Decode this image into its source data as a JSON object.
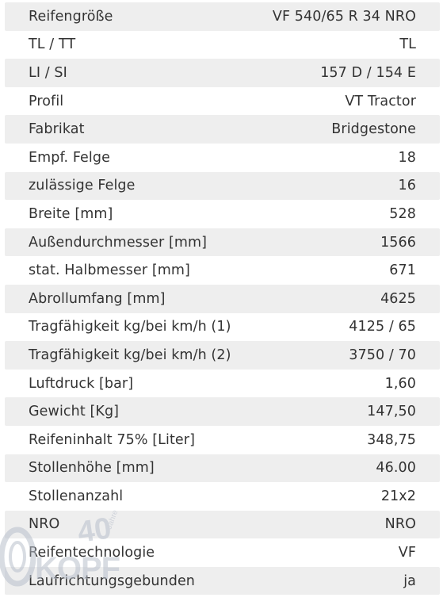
{
  "specs": [
    {
      "label": "Reifengröße",
      "value": "VF 540/65 R 34 NRO"
    },
    {
      "label": "TL / TT",
      "value": "TL"
    },
    {
      "label": "LI / SI",
      "value": "157 D / 154 E"
    },
    {
      "label": "Profil",
      "value": "VT Tractor"
    },
    {
      "label": "Fabrikat",
      "value": "Bridgestone"
    },
    {
      "label": "Empf. Felge",
      "value": "18"
    },
    {
      "label": "zulässige Felge",
      "value": "16"
    },
    {
      "label": "Breite [mm]",
      "value": "528"
    },
    {
      "label": "Außendurchmesser [mm]",
      "value": "1566"
    },
    {
      "label": "stat. Halbmesser [mm]",
      "value": "671"
    },
    {
      "label": "Abrollumfang [mm]",
      "value": "4625"
    },
    {
      "label": "Tragfähigkeit kg/bei km/h (1)",
      "value": "4125 / 65"
    },
    {
      "label": "Tragfähigkeit kg/bei km/h (2)",
      "value": "3750 / 70"
    },
    {
      "label": "Luftdruck [bar]",
      "value": "1,60"
    },
    {
      "label": "Gewicht [Kg]",
      "value": "147,50"
    },
    {
      "label": "Reifeninhalt 75% [Liter]",
      "value": "348,75"
    },
    {
      "label": "Stollenhöhe [mm]",
      "value": "46.00"
    },
    {
      "label": "Stollenanzahl",
      "value": "21x2"
    },
    {
      "label": "NRO",
      "value": "NRO"
    },
    {
      "label": "Reifentechnologie",
      "value": "VF"
    },
    {
      "label": "Laufrichtungsgebunden",
      "value": "ja"
    }
  ],
  "watermark": {
    "logo_text": "KOPF",
    "badge_number": "40",
    "badge_word": "Jahre",
    "color": "#b9c0cc"
  },
  "colors": {
    "row_alt": "#eeeeee",
    "text": "#333333"
  }
}
